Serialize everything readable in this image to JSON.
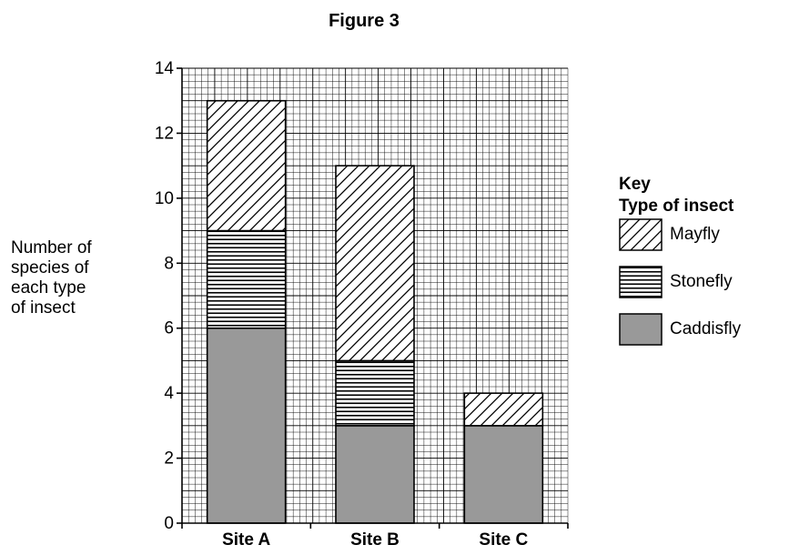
{
  "chart_data": {
    "type": "bar",
    "stacked": true,
    "title": "Figure 3",
    "ylabel_lines": [
      "Number of",
      "species of",
      "each type",
      "of insect"
    ],
    "categories": [
      "Site A",
      "Site B",
      "Site C"
    ],
    "series": [
      {
        "name": "Caddisfly",
        "values": [
          6,
          3,
          3
        ],
        "pattern": "solid",
        "color": "#999999"
      },
      {
        "name": "Stonefly",
        "values": [
          3,
          2,
          0
        ],
        "pattern": "horizontal-lines",
        "color": "#000000"
      },
      {
        "name": "Mayfly",
        "values": [
          4,
          6,
          1
        ],
        "pattern": "diagonal-hatch",
        "color": "#000000"
      }
    ],
    "ylim": [
      0,
      14
    ],
    "yticks": [
      0,
      2,
      4,
      6,
      8,
      10,
      12,
      14
    ],
    "grid": true,
    "legend": {
      "title_lines": [
        "Key",
        "Type of insect"
      ],
      "placement": "right",
      "order": [
        "Mayfly",
        "Stonefly",
        "Caddisfly"
      ]
    }
  }
}
